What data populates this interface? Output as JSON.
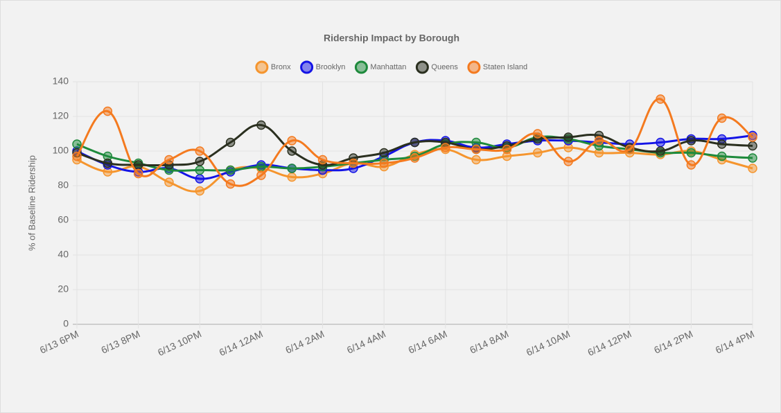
{
  "chart_data": {
    "type": "line",
    "title": "Ridership Impact by Borough",
    "y_label": "% of Baseline Ridership",
    "categories": [
      "6/13 6PM",
      null,
      "6/13 8PM",
      null,
      "6/13 10PM",
      null,
      "6/14 12AM",
      null,
      "6/14 2AM",
      null,
      "6/14 4AM",
      null,
      "6/14 6AM",
      null,
      "6/14 8AM",
      null,
      "6/14 10AM",
      null,
      "6/14 12PM",
      null,
      "6/14 2PM",
      null,
      "6/14 4PM"
    ],
    "series": [
      {
        "name": "Bronx",
        "color": "#f5952e",
        "values": [
          95,
          88,
          91,
          82,
          77,
          89,
          90,
          85,
          87,
          93,
          91,
          98,
          101,
          95,
          97,
          99,
          102,
          99,
          99,
          98,
          100,
          95,
          90
        ]
      },
      {
        "name": "Brooklyn",
        "color": "#1414e6",
        "values": [
          100,
          92,
          88,
          90,
          84,
          88,
          92,
          90,
          89,
          90,
          97,
          105,
          106,
          102,
          104,
          106,
          106,
          105,
          104,
          105,
          107,
          107,
          109
        ]
      },
      {
        "name": "Manhattan",
        "color": "#1e8a3c",
        "values": [
          104,
          97,
          93,
          89,
          89,
          89,
          91,
          90,
          91,
          93,
          95,
          97,
          104,
          105,
          102,
          108,
          107,
          103,
          101,
          99,
          99,
          97,
          96
        ]
      },
      {
        "name": "Queens",
        "color": "#2a2f1f",
        "values": [
          99,
          93,
          92,
          92,
          94,
          105,
          115,
          100,
          92,
          96,
          99,
          105,
          105,
          101,
          103,
          107,
          108,
          109,
          102,
          100,
          106,
          104,
          103
        ]
      },
      {
        "name": "Staten Island",
        "color": "#f47a1f",
        "values": [
          97,
          123,
          87,
          95,
          100,
          81,
          86,
          106,
          95,
          93,
          93,
          96,
          102,
          101,
          101,
          110,
          94,
          106,
          101,
          130,
          92,
          119,
          108
        ]
      }
    ],
    "ylim": [
      0,
      140
    ],
    "yticks": [
      0,
      20,
      40,
      60,
      80,
      100,
      120,
      140
    ],
    "grid": true
  }
}
